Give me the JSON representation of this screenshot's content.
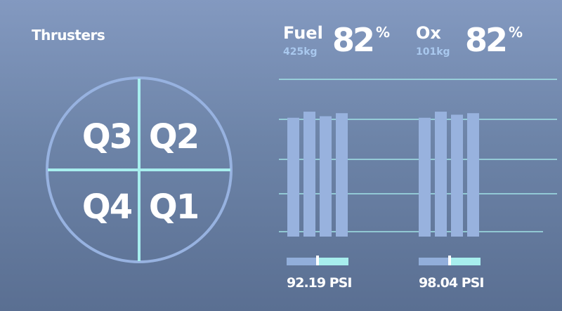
{
  "thrusters": {
    "title": "Thrusters",
    "quadrants": {
      "q3": "Q3",
      "q2": "Q2",
      "q4": "Q4",
      "q1": "Q1"
    }
  },
  "tanks": [
    {
      "name": "Fuel",
      "mass": "425kg",
      "percent": "82",
      "percent_unit": "%",
      "level_fractions": [
        0.78,
        0.82,
        0.79,
        0.81
      ],
      "pressure": "92.19 PSI",
      "pressure_gauge_fraction": 0.5
    },
    {
      "name": "Ox",
      "mass": "101kg",
      "percent": "82",
      "percent_unit": "%",
      "level_fractions": [
        0.78,
        0.82,
        0.8,
        0.81
      ],
      "pressure": "98.04 PSI",
      "pressure_gauge_fraction": 0.5
    }
  ],
  "colors": {
    "accent": "#a7eeee",
    "circle_stroke": "#97b2e0",
    "bar_fill": "#98b2de",
    "mass_text": "#a9c8ee",
    "gauge_left": "#92aedb",
    "gauge_right": "#a7eeee"
  }
}
